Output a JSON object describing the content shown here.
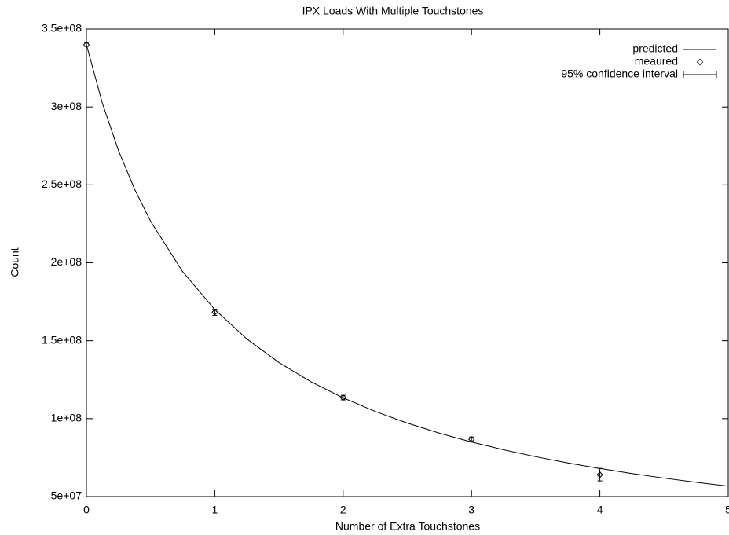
{
  "chart_data": {
    "type": "line",
    "title": "IPX Loads With Multiple Touchstones",
    "x_label": "Number of Extra Touchstones",
    "y_label": "Count",
    "xlim": [
      0,
      5
    ],
    "ylim": [
      50000000,
      350000000
    ],
    "xticks": [
      0,
      1,
      2,
      3,
      4,
      5
    ],
    "yticks": [
      {
        "value": 50000000,
        "label": "5e+07"
      },
      {
        "value": 100000000,
        "label": "1e+08"
      },
      {
        "value": 150000000,
        "label": "1.5e+08"
      },
      {
        "value": 200000000,
        "label": "2e+08"
      },
      {
        "value": 250000000,
        "label": "2.5e+08"
      },
      {
        "value": 300000000,
        "label": "3e+08"
      },
      {
        "value": 350000000,
        "label": "3.5e+08"
      }
    ],
    "legend": "upper right",
    "error_legend": "95% confidence interval",
    "series": [
      {
        "name": "predicted",
        "color": "#000000",
        "style": "line",
        "x": [
          0,
          0.125,
          0.25,
          0.375,
          0.5,
          0.75,
          1,
          1.25,
          1.5,
          1.75,
          2,
          2.25,
          2.5,
          2.75,
          3,
          3.25,
          3.5,
          3.75,
          4,
          4.25,
          4.5,
          4.75,
          5
        ],
        "values": [
          340000000,
          302222222,
          272000000,
          247272727,
          226666667,
          194285714,
          170000000,
          151111111,
          136000000,
          123636364,
          113333333,
          104615385,
          97142857,
          90666667,
          85000000,
          80000000,
          75555556,
          71578947,
          68000000,
          64761905,
          61818182,
          59130435,
          56666667
        ]
      },
      {
        "name": "meaured",
        "color": "#000000",
        "style": "points",
        "x": [
          0,
          1,
          2,
          3,
          4
        ],
        "values": [
          340000000,
          168300000,
          113500000,
          86700000,
          64000000
        ],
        "errors": [
          1000000,
          2000000,
          1500000,
          1500000,
          4000000
        ]
      }
    ]
  }
}
